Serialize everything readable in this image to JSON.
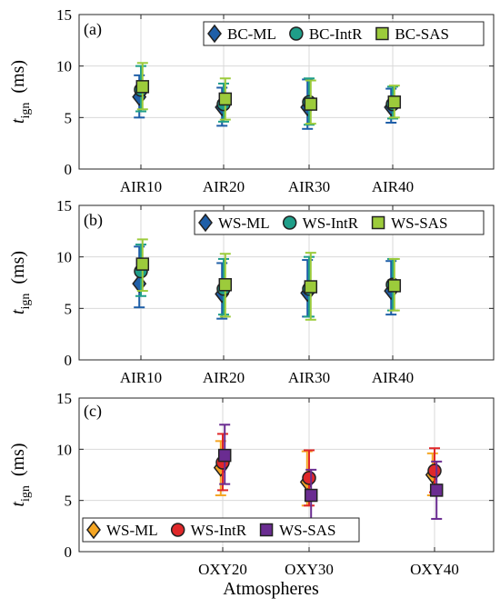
{
  "figure": {
    "xlabel": "Atmospheres",
    "ylabel_main": "t",
    "ylabel_sub": "ign",
    "ylabel_unit": "(ms)"
  },
  "chart_data": [
    {
      "type": "scatter",
      "panel_label": "(a)",
      "categories": [
        "AIR10",
        "AIR20",
        "AIR30",
        "AIR40"
      ],
      "ylim": [
        0,
        15
      ],
      "yticks": [
        0,
        5,
        10,
        15
      ],
      "ylabel": "t_ign (ms)",
      "grid": true,
      "legend_position": "top-right",
      "series": [
        {
          "name": "BC-ML",
          "marker": "diamond",
          "color": "#1f5fa8",
          "values": [
            7.0,
            6.0,
            6.0,
            6.0
          ],
          "lower": [
            5.0,
            4.2,
            3.9,
            4.5
          ],
          "upper": [
            9.1,
            7.9,
            8.7,
            7.8
          ]
        },
        {
          "name": "BC-IntR",
          "marker": "circle",
          "color": "#1f9e89",
          "values": [
            7.7,
            6.3,
            6.5,
            6.3
          ],
          "lower": [
            5.6,
            4.6,
            4.3,
            4.9
          ],
          "upper": [
            10.0,
            8.3,
            8.8,
            8.0
          ]
        },
        {
          "name": "BC-SAS",
          "marker": "square",
          "color": "#9ccb3b",
          "values": [
            8.0,
            6.8,
            6.3,
            6.5
          ],
          "lower": [
            5.8,
            4.8,
            4.4,
            5.0
          ],
          "upper": [
            10.3,
            8.8,
            8.6,
            8.1
          ]
        }
      ]
    },
    {
      "type": "scatter",
      "panel_label": "(b)",
      "categories": [
        "AIR10",
        "AIR20",
        "AIR30",
        "AIR40"
      ],
      "ylim": [
        0,
        15
      ],
      "yticks": [
        0,
        5,
        10,
        15
      ],
      "ylabel": "t_ign (ms)",
      "grid": true,
      "legend_position": "top-right",
      "series": [
        {
          "name": "WS-ML",
          "marker": "diamond",
          "color": "#1f5fa8",
          "values": [
            7.4,
            6.4,
            6.5,
            6.7
          ],
          "lower": [
            5.1,
            4.0,
            4.2,
            4.4
          ],
          "upper": [
            11.0,
            9.4,
            9.7,
            9.6
          ]
        },
        {
          "name": "WS-IntR",
          "marker": "circle",
          "color": "#1f9e89",
          "values": [
            8.6,
            6.9,
            6.9,
            7.3
          ],
          "lower": [
            6.2,
            4.4,
            4.2,
            4.8
          ],
          "upper": [
            11.2,
            9.8,
            10.0,
            9.8
          ]
        },
        {
          "name": "WS-SAS",
          "marker": "square",
          "color": "#9ccb3b",
          "values": [
            9.3,
            7.3,
            7.1,
            7.2
          ],
          "lower": [
            6.7,
            4.2,
            3.9,
            4.8
          ],
          "upper": [
            11.7,
            10.3,
            10.4,
            9.8
          ]
        }
      ]
    },
    {
      "type": "scatter",
      "panel_label": "(c)",
      "categories": [
        "OXY20",
        "OXY30",
        "OXY40"
      ],
      "ylim": [
        0,
        15
      ],
      "yticks": [
        0,
        5,
        10,
        15
      ],
      "ylabel": "t_ign (ms)",
      "xlabel": "Atmospheres",
      "grid": true,
      "legend_position": "bottom-left",
      "series": [
        {
          "name": "WS-ML",
          "marker": "diamond",
          "color": "#f5a623",
          "values": [
            8.2,
            6.8,
            7.5
          ],
          "lower": [
            5.5,
            4.5,
            5.5
          ],
          "upper": [
            10.8,
            9.8,
            9.6
          ]
        },
        {
          "name": "WS-IntR",
          "marker": "circle",
          "color": "#e0282a",
          "values": [
            8.7,
            7.2,
            7.9
          ],
          "lower": [
            6.0,
            4.5,
            5.8
          ],
          "upper": [
            11.5,
            9.9,
            10.1
          ]
        },
        {
          "name": "WS-SAS",
          "marker": "square",
          "color": "#6a2c91",
          "values": [
            9.4,
            5.5,
            6.0
          ],
          "lower": [
            6.6,
            3.0,
            3.2
          ],
          "upper": [
            12.4,
            8.0,
            8.8
          ]
        }
      ]
    }
  ]
}
